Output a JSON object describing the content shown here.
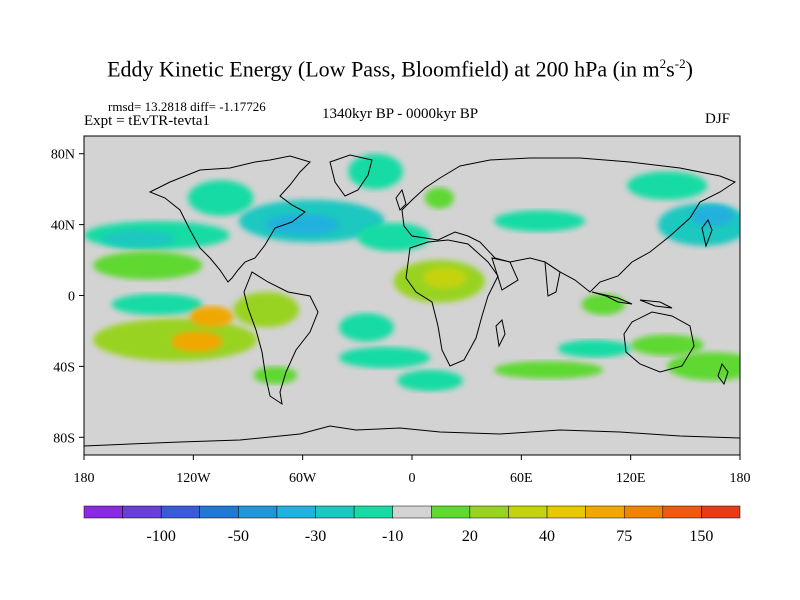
{
  "title": {
    "main": "Eddy Kinetic Energy (Low Pass, Bloomfield) at 200 hPa (in m",
    "sup1": "2",
    "mid": "s",
    "sup2": "-2",
    "end": ")"
  },
  "stats": "rmsd= 13.2818  diff= -1.17726",
  "experiment": "Expt = tEvTR-tevta1",
  "period": "1340kyr BP - 0000kyr BP",
  "season": "DJF",
  "chart_data": {
    "type": "heatmap",
    "title": "Eddy Kinetic Energy (Low Pass, Bloomfield) at 200 hPa (in m2s-2)",
    "units": "m2s-2",
    "x_range": [
      -180,
      180
    ],
    "y_range": [
      -90,
      90
    ],
    "x_ticks": [
      {
        "value": -180,
        "label": "180"
      },
      {
        "value": -120,
        "label": "120W"
      },
      {
        "value": -60,
        "label": "60W"
      },
      {
        "value": 0,
        "label": "0"
      },
      {
        "value": 60,
        "label": "60E"
      },
      {
        "value": 120,
        "label": "120E"
      },
      {
        "value": 180,
        "label": "180"
      }
    ],
    "y_ticks": [
      {
        "value": 80,
        "label": "80N"
      },
      {
        "value": 40,
        "label": "40N"
      },
      {
        "value": 0,
        "label": "0"
      },
      {
        "value": -40,
        "label": "40S"
      },
      {
        "value": -80,
        "label": "80S"
      }
    ],
    "colorbar": {
      "colors": [
        "#8a2be2",
        "#6a3fd8",
        "#3a5bd9",
        "#2078d4",
        "#1f96d8",
        "#21b1dd",
        "#1bc8c0",
        "#18dba4",
        "#d3d3d3",
        "#5fd832",
        "#99d321",
        "#c4d30f",
        "#e8c800",
        "#f0a800",
        "#f08400",
        "#ee5a10",
        "#e83a18"
      ],
      "labels": [
        {
          "after_index": 1,
          "label": "-100"
        },
        {
          "after_index": 3,
          "label": "-50"
        },
        {
          "after_index": 5,
          "label": "-30"
        },
        {
          "after_index": 7,
          "label": "-10"
        },
        {
          "after_index": 9,
          "label": "20"
        },
        {
          "after_index": 11,
          "label": "40"
        },
        {
          "after_index": 13,
          "label": "75"
        },
        {
          "after_index": 15,
          "label": "150"
        }
      ]
    },
    "background_color": "#d3d3d3",
    "anomaly_features": [
      {
        "name": "north-pacific-neg",
        "lon": -140,
        "lat": 34,
        "rlon": 40,
        "rlat": 8,
        "value": -20
      },
      {
        "name": "north-pacific-neg-core",
        "lon": -150,
        "lat": 32,
        "rlon": 20,
        "rlat": 5,
        "value": -30
      },
      {
        "name": "north-pacific-pos",
        "lon": -145,
        "lat": 17,
        "rlon": 30,
        "rlat": 8,
        "value": 15
      },
      {
        "name": "west-pacific-neg",
        "lon": 160,
        "lat": 40,
        "rlon": 25,
        "rlat": 12,
        "value": -25
      },
      {
        "name": "west-pacific-neg-core",
        "lon": 165,
        "lat": 45,
        "rlon": 12,
        "rlat": 6,
        "value": -35
      },
      {
        "name": "canada-neg",
        "lon": -105,
        "lat": 55,
        "rlon": 18,
        "rlat": 10,
        "value": -15
      },
      {
        "name": "greenland-neg",
        "lon": -20,
        "lat": 70,
        "rlon": 15,
        "rlat": 10,
        "value": -15
      },
      {
        "name": "north-atlantic-neg",
        "lon": -55,
        "lat": 42,
        "rlon": 40,
        "rlat": 12,
        "value": -25
      },
      {
        "name": "north-atlantic-neg-core",
        "lon": -60,
        "lat": 40,
        "rlon": 20,
        "rlat": 6,
        "value": -35
      },
      {
        "name": "mediterranean-neg",
        "lon": -10,
        "lat": 33,
        "rlon": 20,
        "rlat": 8,
        "value": -20
      },
      {
        "name": "europe-pos",
        "lon": 15,
        "lat": 55,
        "rlon": 8,
        "rlat": 6,
        "value": 15
      },
      {
        "name": "asia-neg",
        "lon": 70,
        "lat": 42,
        "rlon": 25,
        "rlat": 6,
        "value": -12
      },
      {
        "name": "siberia-neg",
        "lon": 140,
        "lat": 62,
        "rlon": 22,
        "rlat": 8,
        "value": -12
      },
      {
        "name": "africa-pos",
        "lon": 15,
        "lat": 8,
        "rlon": 25,
        "rlat": 12,
        "value": 22
      },
      {
        "name": "africa-pos-core",
        "lon": 18,
        "lat": 10,
        "rlon": 12,
        "rlat": 6,
        "value": 35
      },
      {
        "name": "indonesia-pos",
        "lon": 105,
        "lat": -5,
        "rlon": 12,
        "rlat": 6,
        "value": 15
      },
      {
        "name": "tropical-pacific-neg",
        "lon": -140,
        "lat": -5,
        "rlon": 25,
        "rlat": 6,
        "value": -15
      },
      {
        "name": "south-pacific-pos",
        "lon": -130,
        "lat": -25,
        "rlon": 45,
        "rlat": 12,
        "value": 25
      },
      {
        "name": "south-pacific-max-1",
        "lon": -110,
        "lat": -12,
        "rlon": 12,
        "rlat": 6,
        "value": 60
      },
      {
        "name": "south-pacific-max-2",
        "lon": -118,
        "lat": -26,
        "rlon": 14,
        "rlat": 6,
        "value": 55
      },
      {
        "name": "south-america-pos",
        "lon": -80,
        "lat": -8,
        "rlon": 18,
        "rlat": 10,
        "value": 22
      },
      {
        "name": "south-atlantic-neg",
        "lon": -25,
        "lat": -18,
        "rlon": 15,
        "rlat": 8,
        "value": -15
      },
      {
        "name": "southern-ocean-neg",
        "lon": -15,
        "lat": -35,
        "rlon": 25,
        "rlat": 6,
        "value": -15
      },
      {
        "name": "southern-ocean-neg-2",
        "lon": 10,
        "lat": -48,
        "rlon": 18,
        "rlat": 6,
        "value": -12
      },
      {
        "name": "indian-ocean-pos",
        "lon": 75,
        "lat": -42,
        "rlon": 30,
        "rlat": 5,
        "value": 15
      },
      {
        "name": "australia-pos",
        "lon": 140,
        "lat": -28,
        "rlon": 20,
        "rlat": 6,
        "value": 15
      },
      {
        "name": "east-indian-neg",
        "lon": 100,
        "lat": -30,
        "rlon": 20,
        "rlat": 5,
        "value": -12
      },
      {
        "name": "south-pacific-east-pos",
        "lon": 165,
        "lat": -40,
        "rlon": 25,
        "rlat": 8,
        "value": 18
      },
      {
        "name": "drake-pos",
        "lon": -75,
        "lat": -45,
        "rlon": 12,
        "rlat": 5,
        "value": 15
      }
    ]
  }
}
